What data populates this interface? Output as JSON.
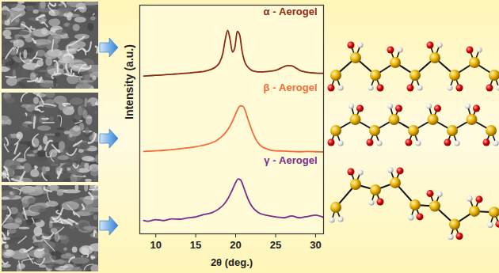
{
  "chart_data": {
    "type": "line",
    "x_label": "2θ (deg.)",
    "y_label": "Intensity (a.u.)",
    "xlim": [
      8,
      31
    ],
    "xticks": [
      10,
      15,
      20,
      25,
      30
    ],
    "ylim": [
      0,
      100
    ],
    "tick_labels": "x",
    "grid": false,
    "series": [
      {
        "name": "α - Aerogel",
        "color": "#8b2a14",
        "x": [
          8.5,
          9,
          10,
          11,
          12,
          13,
          14,
          15,
          16,
          16.5,
          17,
          17.5,
          18,
          18.4,
          18.7,
          19,
          19.3,
          19.6,
          19.9,
          20.2,
          20.5,
          20.8,
          21.1,
          21.5,
          22,
          22.5,
          23,
          24,
          25,
          25.5,
          26,
          26.5,
          27,
          27.5,
          28,
          29,
          30,
          31
        ],
        "values": [
          69.0,
          69.1,
          69.3,
          69.5,
          69.8,
          70.0,
          70.3,
          70.6,
          71.0,
          71.4,
          72.0,
          73.0,
          75.0,
          79.0,
          85.0,
          89.0,
          85.0,
          79.5,
          81.5,
          88.5,
          87.0,
          80.0,
          75.5,
          73.0,
          71.5,
          71.0,
          70.8,
          71.0,
          71.5,
          72.2,
          73.0,
          73.6,
          73.5,
          72.6,
          71.5,
          70.6,
          70.3,
          70.2
        ]
      },
      {
        "name": "β - Aerogel",
        "color": "#f26b3a",
        "x": [
          8.5,
          9,
          10,
          11,
          12,
          13,
          14,
          15,
          16,
          17,
          17.5,
          18,
          18.5,
          19,
          19.5,
          20,
          20.3,
          20.6,
          20.9,
          21.2,
          21.5,
          22,
          22.5,
          23,
          24,
          25,
          26,
          27,
          28,
          29,
          30,
          31
        ],
        "values": [
          36.0,
          36.1,
          36.3,
          36.5,
          36.8,
          37.2,
          37.6,
          38.1,
          38.8,
          39.8,
          40.6,
          41.8,
          43.3,
          45.5,
          48.5,
          52.5,
          54.8,
          56.0,
          55.8,
          53.8,
          50.5,
          45.5,
          41.5,
          39.0,
          37.0,
          36.3,
          36.2,
          36.0,
          35.9,
          36.0,
          35.9,
          35.8
        ]
      },
      {
        "name": "γ - Aerogel",
        "color": "#7b2d8e",
        "x": [
          8.5,
          9,
          10,
          11,
          12,
          13,
          14,
          15,
          16,
          17,
          18,
          18.5,
          19,
          19.5,
          20,
          20.3,
          20.6,
          20.9,
          21.2,
          21.6,
          22,
          22.5,
          23,
          24,
          25,
          26,
          27,
          28,
          29,
          30,
          31
        ],
        "values": [
          5.8,
          5.5,
          6.2,
          5.8,
          6.5,
          6.4,
          7.0,
          7.4,
          8.4,
          9.2,
          11.2,
          12.8,
          15.2,
          18.6,
          22.4,
          24.0,
          23.6,
          21.4,
          18.4,
          14.8,
          12.2,
          10.2,
          9.0,
          8.0,
          7.4,
          7.0,
          7.8,
          7.0,
          7.6,
          8.2,
          7.2
        ]
      }
    ]
  }
}
